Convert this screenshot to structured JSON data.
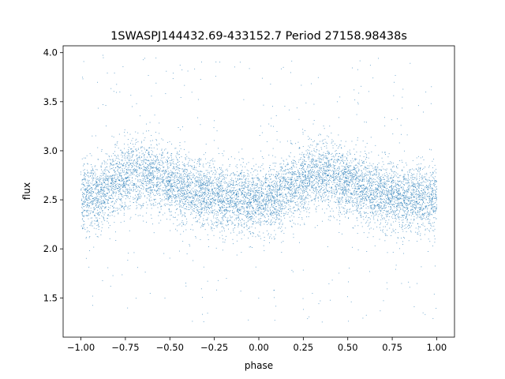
{
  "chart_data": {
    "type": "scatter",
    "title": "1SWASPJ144432.69-433152.7 Period 27158.98438s",
    "xlabel": "phase",
    "ylabel": "flux",
    "xlim": [
      -1.1,
      1.1
    ],
    "ylim": [
      1.1,
      4.07
    ],
    "xticks": [
      -1.0,
      -0.75,
      -0.5,
      -0.25,
      0.0,
      0.25,
      0.5,
      0.75,
      1.0
    ],
    "xtick_labels": [
      "−1.00",
      "−0.75",
      "−0.50",
      "−0.25",
      "0.00",
      "0.25",
      "0.50",
      "0.75",
      "1.00"
    ],
    "yticks": [
      1.5,
      2.0,
      2.5,
      3.0,
      3.5,
      4.0
    ],
    "ytick_labels": [
      "1.5",
      "2.0",
      "2.5",
      "3.0",
      "3.5",
      "4.0"
    ],
    "grid": false,
    "legend": null,
    "point_color": "#1f77b4",
    "series": [
      {
        "x_range": [
          -1.0,
          1.0
        ],
        "profile_phase": [
          -1.0,
          -0.9,
          -0.8,
          -0.7,
          -0.6,
          -0.5,
          -0.4,
          -0.3,
          -0.2,
          -0.1,
          0.0,
          0.1,
          0.2,
          0.3,
          0.4,
          0.5,
          0.6,
          0.7,
          0.8,
          0.9,
          1.0
        ],
        "profile_flux": [
          2.52,
          2.55,
          2.68,
          2.78,
          2.76,
          2.68,
          2.6,
          2.55,
          2.52,
          2.5,
          2.5,
          2.52,
          2.65,
          2.77,
          2.76,
          2.67,
          2.6,
          2.55,
          2.53,
          2.52,
          2.52
        ],
        "scatter_sd": 0.17,
        "outlier_range": [
          1.25,
          4.0
        ]
      }
    ]
  }
}
